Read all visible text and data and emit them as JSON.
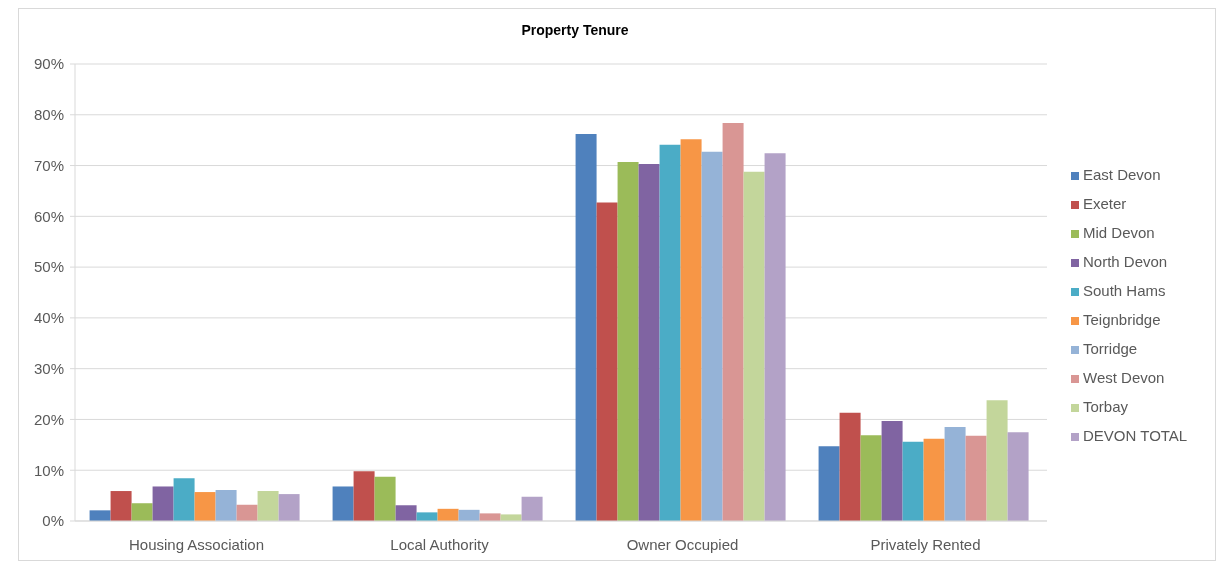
{
  "chart_data": {
    "type": "bar",
    "title": "Property Tenure",
    "categories": [
      "Housing Association",
      "Local Authority",
      "Owner Occupied",
      "Privately Rented"
    ],
    "series": [
      {
        "name": "East Devon",
        "color": "#4f81bd",
        "values": [
          2.1,
          6.8,
          76.2,
          14.7
        ]
      },
      {
        "name": "Exeter",
        "color": "#c0504d",
        "values": [
          5.9,
          9.8,
          62.7,
          21.3
        ]
      },
      {
        "name": "Mid Devon",
        "color": "#9bbb59",
        "values": [
          3.5,
          8.7,
          70.7,
          16.9
        ]
      },
      {
        "name": "North Devon",
        "color": "#8064a2",
        "values": [
          6.8,
          3.1,
          70.3,
          19.7
        ]
      },
      {
        "name": "South Hams",
        "color": "#4bacc6",
        "values": [
          8.4,
          1.7,
          74.1,
          15.6
        ]
      },
      {
        "name": "Teignbridge",
        "color": "#f79646",
        "values": [
          5.7,
          2.4,
          75.2,
          16.2
        ]
      },
      {
        "name": "Torridge",
        "color": "#95b3d7",
        "values": [
          6.1,
          2.2,
          72.7,
          18.5
        ]
      },
      {
        "name": "West Devon",
        "color": "#d99694",
        "values": [
          3.2,
          1.5,
          78.4,
          16.8
        ]
      },
      {
        "name": "Torbay",
        "color": "#c3d69b",
        "values": [
          5.9,
          1.3,
          68.8,
          23.8
        ]
      },
      {
        "name": "DEVON TOTAL",
        "color": "#b3a2c7",
        "values": [
          5.3,
          4.8,
          72.4,
          17.5
        ]
      }
    ],
    "ylim": [
      0,
      90
    ],
    "yticks": [
      {
        "value": 0,
        "label": "0%"
      },
      {
        "value": 10,
        "label": "10%"
      },
      {
        "value": 20,
        "label": "20%"
      },
      {
        "value": 30,
        "label": "30%"
      },
      {
        "value": 40,
        "label": "40%"
      },
      {
        "value": 50,
        "label": "50%"
      },
      {
        "value": 60,
        "label": "60%"
      },
      {
        "value": 70,
        "label": "70%"
      },
      {
        "value": 80,
        "label": "80%"
      },
      {
        "value": 90,
        "label": "90%"
      }
    ],
    "grid": "y",
    "legend": "right"
  }
}
